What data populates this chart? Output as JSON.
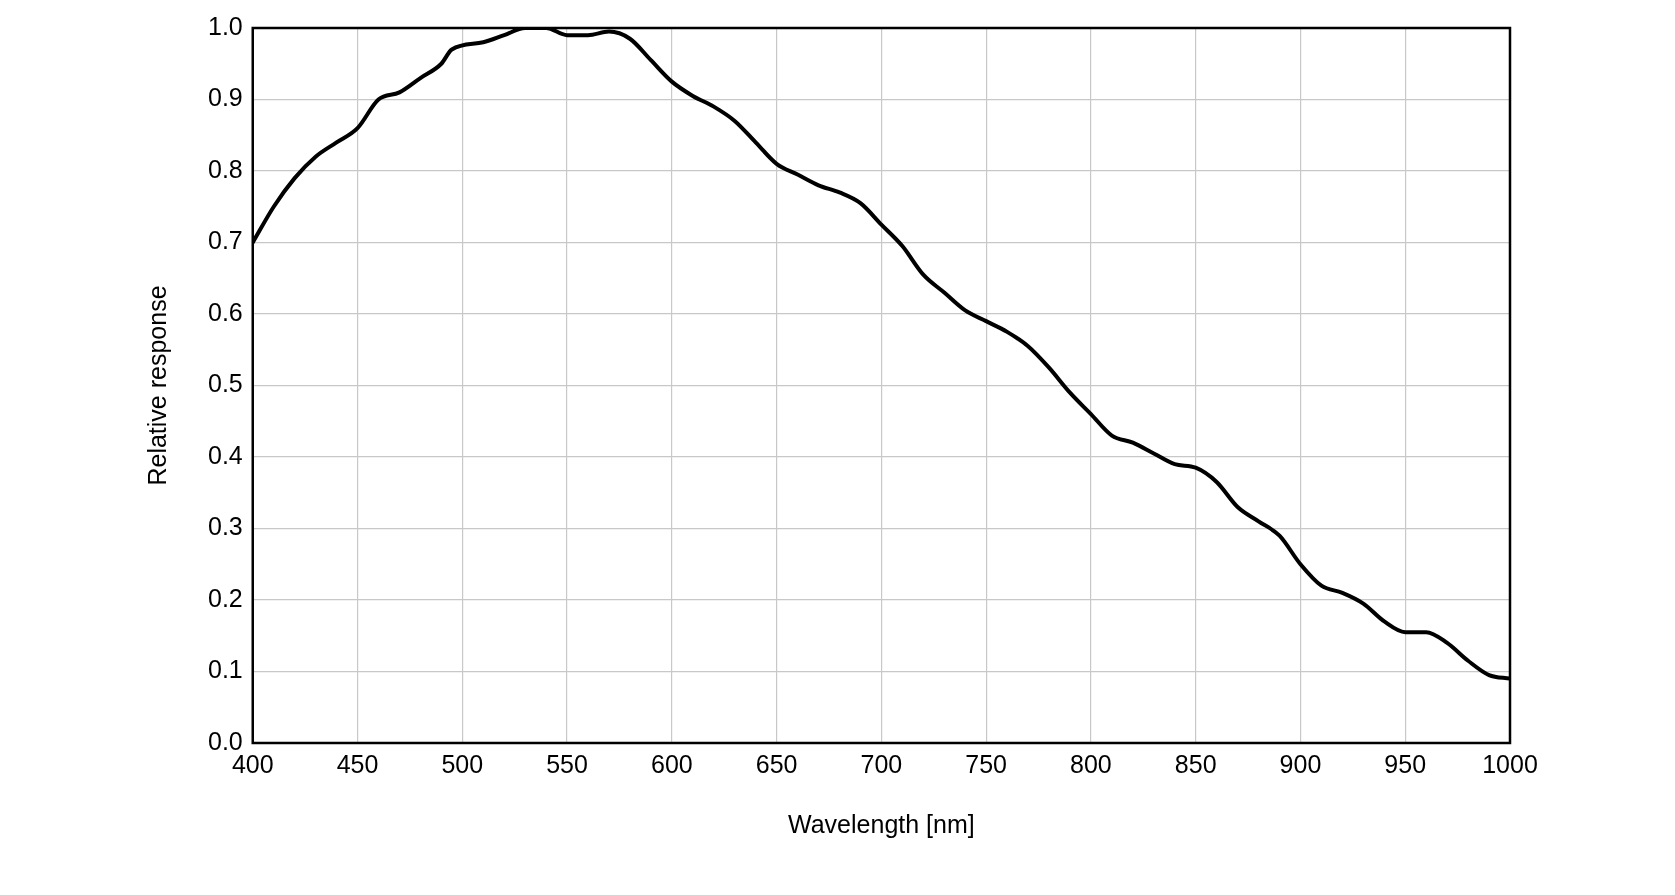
{
  "chart_data": {
    "type": "line",
    "xlabel": "Wavelength [nm]",
    "ylabel": "Relative response",
    "x": [
      400,
      410,
      420,
      430,
      440,
      450,
      460,
      470,
      480,
      490,
      495,
      510,
      520,
      530,
      540,
      550,
      560,
      570,
      580,
      590,
      600,
      610,
      620,
      630,
      640,
      650,
      660,
      670,
      680,
      690,
      700,
      710,
      720,
      730,
      740,
      750,
      760,
      770,
      780,
      790,
      800,
      810,
      820,
      830,
      840,
      850,
      860,
      870,
      880,
      890,
      900,
      910,
      920,
      930,
      940,
      950,
      960,
      970,
      980,
      990,
      1000
    ],
    "series": [
      {
        "color": "#000000",
        "values": [
          0.7,
          0.75,
          0.79,
          0.82,
          0.84,
          0.86,
          0.9,
          0.91,
          0.93,
          0.95,
          0.97,
          0.98,
          0.99,
          1.0,
          1.0,
          0.99,
          0.99,
          0.995,
          0.985,
          0.955,
          0.925,
          0.905,
          0.89,
          0.87,
          0.84,
          0.81,
          0.795,
          0.78,
          0.77,
          0.755,
          0.725,
          0.695,
          0.655,
          0.63,
          0.605,
          0.59,
          0.575,
          0.555,
          0.525,
          0.49,
          0.46,
          0.43,
          0.42,
          0.405,
          0.39,
          0.385,
          0.365,
          0.33,
          0.31,
          0.29,
          0.25,
          0.22,
          0.21,
          0.195,
          0.17,
          0.155,
          0.155,
          0.14,
          0.115,
          0.095,
          0.09
        ]
      }
    ],
    "xlim": [
      400,
      1000
    ],
    "xticks": [
      400,
      450,
      500,
      550,
      600,
      650,
      700,
      750,
      800,
      850,
      900,
      950,
      1000
    ],
    "ylim": [
      0,
      1
    ],
    "yticks": [
      {
        "value": 0,
        "label": "0.0"
      },
      0.1,
      0.2,
      0.3,
      0.4,
      0.5,
      0.6,
      0.7,
      0.8,
      0.9,
      {
        "value": 1,
        "label": "1.0"
      }
    ],
    "grid": true,
    "legend": false,
    "marker": "none",
    "line_style": "solid"
  }
}
